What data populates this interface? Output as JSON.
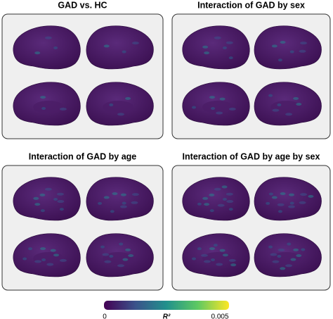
{
  "panels": [
    {
      "title": "GAD vs. HC"
    },
    {
      "title": "Interaction of GAD by sex"
    },
    {
      "title": "Interaction of GAD by age"
    },
    {
      "title": "Interaction of GAD by age by sex"
    }
  ],
  "colorbar": {
    "label": "R²",
    "min": 0,
    "max": 0.005
  }
}
